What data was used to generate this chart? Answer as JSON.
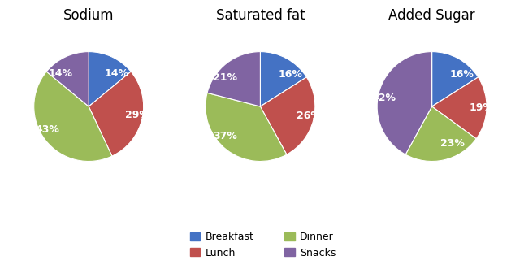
{
  "charts": [
    {
      "title": "Sodium",
      "values": [
        14,
        29,
        43,
        14
      ],
      "labels": [
        "14%",
        "29%",
        "43%",
        "14%"
      ],
      "startangle": 90
    },
    {
      "title": "Saturated fat",
      "values": [
        16,
        26,
        37,
        21
      ],
      "labels": [
        "16%",
        "26%",
        "37%",
        "21%"
      ],
      "startangle": 90
    },
    {
      "title": "Added Sugar",
      "values": [
        16,
        19,
        23,
        42
      ],
      "labels": [
        "16%",
        "19%",
        "23%",
        "42%"
      ],
      "startangle": 90
    }
  ],
  "categories": [
    "Breakfast",
    "Lunch",
    "Dinner",
    "Snacks"
  ],
  "colors": [
    "#4472C4",
    "#C0504D",
    "#9BBB59",
    "#8064A2"
  ],
  "legend_labels": [
    "Breakfast",
    "Lunch",
    "Dinner",
    "Snacks"
  ],
  "title_fontsize": 12,
  "label_fontsize": 9,
  "background_color": "#FFFFFF"
}
